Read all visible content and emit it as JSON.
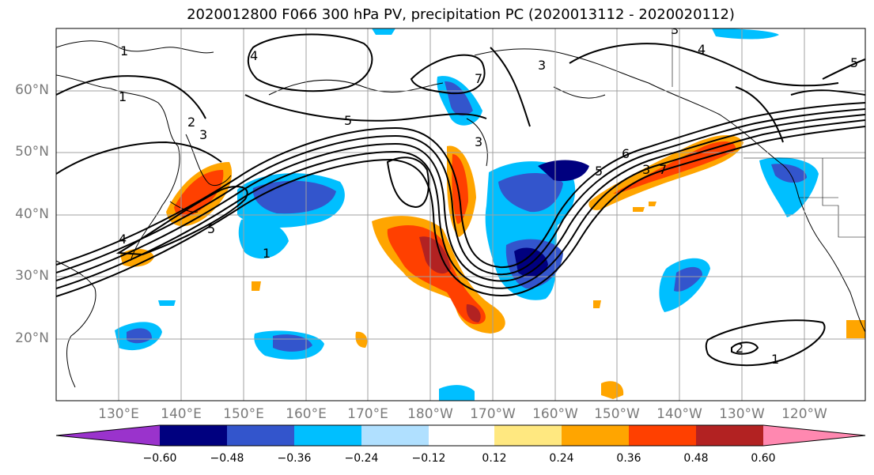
{
  "title": "2020012800 F066 300 hPa PV, precipitation PC (2020013112 - 2020020112)",
  "lat_labels": [
    "60°N",
    "50°N",
    "40°N",
    "30°N",
    "20°N"
  ],
  "lon_labels": [
    "130°E",
    "140°E",
    "150°E",
    "160°E",
    "170°E",
    "180°W",
    "170°W",
    "160°W",
    "150°W",
    "140°W",
    "130°W",
    "120°W"
  ],
  "colorbar": {
    "tick_labels": [
      "−0.60",
      "−0.48",
      "−0.36",
      "−0.24",
      "−0.12",
      "0.12",
      "0.24",
      "0.36",
      "0.48",
      "0.60"
    ],
    "colors": {
      "under": "#9a33cc",
      "c1": "#00007f",
      "c2": "#3355cc",
      "c3": "#00bfff",
      "c4": "#b0e0ff",
      "c5": "#ffffff",
      "c6": "#ffe880",
      "c7": "#ffa500",
      "c8": "#ff4000",
      "c9": "#b22222",
      "over": "#ff88b0"
    }
  },
  "pv_contour_labels": [
    "1",
    "2",
    "3",
    "4",
    "5",
    "6",
    "7"
  ]
}
